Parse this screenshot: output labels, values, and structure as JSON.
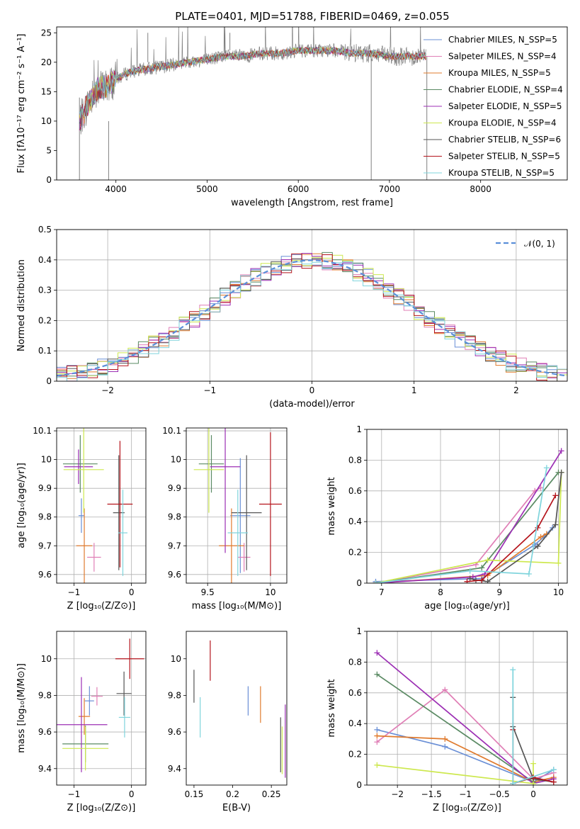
{
  "chart_data": [
    {
      "type": "line",
      "title": "PLATE=0401, MJD=51788, FIBERID=0469, z=0.055",
      "xlabel": "wavelength [Angstrom, rest frame]",
      "ylabel": "Flux [fλ10⁻¹⁷ erg cm⁻² s⁻¹ A⁻¹]",
      "xlim": [
        3350,
        8950
      ],
      "ylim": [
        0,
        26
      ],
      "xticks": [
        4000,
        5000,
        6000,
        7000,
        8000
      ],
      "yticks": [
        0,
        5,
        10,
        15,
        20,
        25
      ],
      "legend_position": "upper-right",
      "approx_continuum": {
        "x": [
          3600,
          3700,
          3800,
          3900,
          4000,
          4100,
          4200,
          4400,
          4600,
          4800,
          5000,
          5200,
          5400,
          5600,
          5800,
          6000,
          6200,
          6400,
          6600,
          6800,
          7000,
          7200,
          7400
        ],
        "y": [
          10,
          13,
          15.5,
          16,
          17,
          18,
          18.5,
          19,
          19.5,
          20,
          20.5,
          21,
          21,
          21.5,
          21.5,
          22,
          22,
          22,
          21.5,
          21.5,
          21,
          21,
          21
        ]
      },
      "series": [
        {
          "name": "Chabrier MILES, N_SSP=5",
          "color": "#6a8fd6"
        },
        {
          "name": "Salpeter MILES, N_SSP=4",
          "color": "#e07fb6"
        },
        {
          "name": "Kroupa MILES, N_SSP=5",
          "color": "#e07b2e"
        },
        {
          "name": "Chabrier ELODIE, N_SSP=4",
          "color": "#5a8a63"
        },
        {
          "name": "Salpeter ELODIE, N_SSP=5",
          "color": "#9c2fb4"
        },
        {
          "name": "Kroupa ELODIE, N_SSP=4",
          "color": "#cde84e"
        },
        {
          "name": "Chabrier STELIB, N_SSP=6",
          "color": "#555555"
        },
        {
          "name": "Salpeter STELIB, N_SSP=5",
          "color": "#b5141c"
        },
        {
          "name": "Kroupa STELIB, N_SSP=5",
          "color": "#7fd4dc"
        }
      ]
    },
    {
      "type": "line",
      "xlabel": "(data-model)/error",
      "ylabel": "Normed distribution",
      "xlim": [
        -2.5,
        2.5
      ],
      "ylim": [
        0,
        0.5
      ],
      "xticks": [
        -2,
        -1,
        0,
        1,
        2
      ],
      "yticks": [
        0.0,
        0.1,
        0.2,
        0.3,
        0.4,
        0.5
      ],
      "grid": true,
      "legend": [
        "𝒩(0, 1)"
      ],
      "legend_position": "upper-right",
      "reference_curve": "standard normal N(0,1), dashed, #5b8fd9",
      "histogram_bin_width": 0.1
    },
    {
      "type": "scatter",
      "xlabel": "Z [log₁₀(Z/Z⊙)]",
      "ylabel": "age  [log₁₀(age/yr)]",
      "xlim": [
        -1.3,
        0.25
      ],
      "ylim": [
        9.57,
        10.11
      ],
      "xticks": [
        -1,
        0
      ],
      "yticks": [
        9.6,
        9.7,
        9.8,
        9.9,
        10.0,
        10.1
      ],
      "grid": true,
      "points": [
        {
          "x": -0.87,
          "y": 9.805,
          "xerr": 0.05,
          "yerr": 0.06,
          "color": "#6a8fd6"
        },
        {
          "x": -0.65,
          "y": 9.66,
          "xerr": 0.12,
          "yerr": 0.05,
          "color": "#e07fb6"
        },
        {
          "x": -0.82,
          "y": 9.7,
          "xerr": 0.14,
          "yerr": 0.13,
          "color": "#e07b2e"
        },
        {
          "x": -0.89,
          "y": 9.985,
          "xerr": 0.3,
          "yerr": 0.1,
          "color": "#5a8a63"
        },
        {
          "x": -0.92,
          "y": 9.975,
          "xerr": 0.25,
          "yerr": 0.06,
          "color": "#9c2fb4"
        },
        {
          "x": -0.83,
          "y": 9.965,
          "xerr": 0.35,
          "yerr": 0.15,
          "color": "#cde84e"
        },
        {
          "x": -0.22,
          "y": 9.815,
          "xerr": 0.1,
          "yerr": 0.2,
          "color": "#555555"
        },
        {
          "x": -0.2,
          "y": 9.845,
          "xerr": 0.22,
          "yerr": 0.22,
          "color": "#b5141c"
        },
        {
          "x": -0.15,
          "y": 9.745,
          "xerr": 0.08,
          "yerr": 0.15,
          "color": "#7fd4dc"
        }
      ]
    },
    {
      "type": "scatter",
      "xlabel": "mass [log₁₀(M/M⊙)]",
      "xlim": [
        9.33,
        10.13
      ],
      "ylim": [
        9.57,
        10.11
      ],
      "xticks": [
        9.5,
        10.0
      ],
      "yticks": [
        9.6,
        9.7,
        9.8,
        9.9,
        10.0,
        10.1
      ],
      "grid": true,
      "points": [
        {
          "x": 9.76,
          "y": 9.805,
          "xerr": 0.08,
          "yerr": 0.2,
          "color": "#6a8fd6"
        },
        {
          "x": 9.79,
          "y": 9.66,
          "xerr": 0.05,
          "yerr": 0.05,
          "color": "#e07fb6"
        },
        {
          "x": 9.69,
          "y": 9.7,
          "xerr": 0.1,
          "yerr": 0.13,
          "color": "#e07b2e"
        },
        {
          "x": 9.53,
          "y": 9.985,
          "xerr": 0.1,
          "yerr": 0.1,
          "color": "#5a8a63"
        },
        {
          "x": 9.64,
          "y": 9.975,
          "xerr": 0.12,
          "yerr": 0.3,
          "color": "#9c2fb4"
        },
        {
          "x": 9.51,
          "y": 9.965,
          "xerr": 0.12,
          "yerr": 0.15,
          "color": "#cde84e"
        },
        {
          "x": 9.81,
          "y": 9.815,
          "xerr": 0.12,
          "yerr": 0.2,
          "color": "#555555"
        },
        {
          "x": 10.0,
          "y": 9.845,
          "xerr": 0.09,
          "yerr": 0.25,
          "color": "#b5141c"
        },
        {
          "x": 9.74,
          "y": 9.745,
          "xerr": 0.08,
          "yerr": 0.15,
          "color": "#7fd4dc"
        }
      ]
    },
    {
      "type": "line",
      "xlabel": "age  [log₁₀(age/yr)]",
      "ylabel": "mass weight",
      "xlim": [
        6.75,
        10.15
      ],
      "ylim": [
        0,
        1.0
      ],
      "xticks": [
        7,
        8,
        9,
        10
      ],
      "yticks": [
        0.0,
        0.2,
        0.4,
        0.6,
        0.8,
        1.0
      ],
      "grid": true,
      "series": [
        {
          "name": "Chabrier MILES",
          "color": "#6a8fd6",
          "x": [
            6.9,
            8.7,
            9.6,
            9.75,
            9.9
          ],
          "y": [
            0.01,
            0.03,
            0.25,
            0.3,
            0.36
          ]
        },
        {
          "name": "Salpeter MILES",
          "color": "#e07fb6",
          "x": [
            6.9,
            8.6,
            9.6,
            9.7
          ],
          "y": [
            0.0,
            0.12,
            0.6,
            0.62
          ]
        },
        {
          "name": "Kroupa MILES",
          "color": "#e07b2e",
          "x": [
            6.9,
            8.8,
            9.7,
            9.8
          ],
          "y": [
            0.0,
            0.05,
            0.3,
            0.32
          ]
        },
        {
          "name": "Chabrier ELODIE",
          "color": "#5a8a63",
          "x": [
            6.9,
            8.7,
            10.0
          ],
          "y": [
            0.0,
            0.1,
            0.72
          ]
        },
        {
          "name": "Salpeter ELODIE",
          "color": "#9c2fb4",
          "x": [
            6.9,
            8.55,
            8.75,
            10.05
          ],
          "y": [
            0.0,
            0.04,
            0.06,
            0.86
          ]
        },
        {
          "name": "Kroupa ELODIE",
          "color": "#cde84e",
          "x": [
            6.9,
            8.8,
            10.0,
            10.05
          ],
          "y": [
            0.0,
            0.15,
            0.13,
            0.72
          ]
        },
        {
          "name": "Chabrier STELIB",
          "color": "#555555",
          "x": [
            8.5,
            8.6,
            8.8,
            9.65,
            9.95,
            10.05
          ],
          "y": [
            0.03,
            0.02,
            0.01,
            0.24,
            0.38,
            0.72
          ]
        },
        {
          "name": "Salpeter STELIB",
          "color": "#b5141c",
          "x": [
            8.45,
            8.7,
            9.65,
            9.95
          ],
          "y": [
            0.01,
            0.02,
            0.36,
            0.57
          ]
        },
        {
          "name": "Kroupa STELIB",
          "color": "#7fd4dc",
          "x": [
            6.9,
            8.5,
            9.5,
            9.8
          ],
          "y": [
            0.0,
            0.08,
            0.06,
            0.75
          ]
        }
      ]
    },
    {
      "type": "scatter",
      "xlabel": "Z [log₁₀(Z/Z⊙)]",
      "ylabel": "mass [log₁₀(M/M⊙)]",
      "xlim": [
        -1.3,
        0.25
      ],
      "ylim": [
        9.31,
        10.15
      ],
      "xticks": [
        -1,
        0
      ],
      "yticks": [
        9.4,
        9.6,
        9.8,
        10.0
      ],
      "grid": true,
      "points": [
        {
          "x": -0.73,
          "y": 9.77,
          "xerr": 0.08,
          "yerr": 0.08,
          "color": "#6a8fd6"
        },
        {
          "x": -0.6,
          "y": 9.795,
          "xerr": 0.1,
          "yerr": 0.05,
          "color": "#e07fb6"
        },
        {
          "x": -0.82,
          "y": 9.685,
          "xerr": 0.1,
          "yerr": 0.1,
          "color": "#e07b2e"
        },
        {
          "x": -0.8,
          "y": 9.535,
          "xerr": 0.4,
          "yerr": 0.1,
          "color": "#5a8a63"
        },
        {
          "x": -0.87,
          "y": 9.64,
          "xerr": 0.45,
          "yerr": 0.26,
          "color": "#9c2fb4"
        },
        {
          "x": -0.8,
          "y": 9.51,
          "xerr": 0.4,
          "yerr": 0.12,
          "color": "#cde84e"
        },
        {
          "x": -0.13,
          "y": 9.81,
          "xerr": 0.13,
          "yerr": 0.12,
          "color": "#555555"
        },
        {
          "x": -0.03,
          "y": 10.0,
          "xerr": 0.25,
          "yerr": 0.11,
          "color": "#b5141c"
        },
        {
          "x": -0.12,
          "y": 9.68,
          "xerr": 0.1,
          "yerr": 0.11,
          "color": "#7fd4dc"
        }
      ]
    },
    {
      "type": "scatter",
      "xlabel": "E(B-V)",
      "xlim": [
        0.14,
        0.27
      ],
      "ylim": [
        9.31,
        10.15
      ],
      "xticks": [
        0.15,
        0.2,
        0.25
      ],
      "yticks": [
        9.4,
        9.6,
        9.8,
        10.0
      ],
      "grid": false,
      "points": [
        {
          "x": 0.22,
          "y": 9.77,
          "yerr": 0.08,
          "color": "#6a8fd6"
        },
        {
          "x": 0.236,
          "y": 9.75,
          "yerr": 0.1,
          "color": "#e07b2e"
        },
        {
          "x": 0.15,
          "y": 9.85,
          "yerr": 0.09,
          "color": "#555555"
        },
        {
          "x": 0.171,
          "y": 9.99,
          "yerr": 0.11,
          "color": "#b5141c"
        },
        {
          "x": 0.158,
          "y": 9.68,
          "yerr": 0.11,
          "color": "#7fd4dc"
        },
        {
          "x": 0.262,
          "y": 9.53,
          "yerr": 0.15,
          "color": "#555555"
        },
        {
          "x": 0.264,
          "y": 9.5,
          "yerr": 0.13,
          "color": "#cde84e"
        },
        {
          "x": 0.268,
          "y": 9.55,
          "yerr": 0.2,
          "color": "#9c2fb4"
        }
      ]
    },
    {
      "type": "line",
      "xlabel": "Z [log₁₀(Z/Z⊙)]",
      "ylabel": "mass weight",
      "xlim": [
        -2.45,
        0.5
      ],
      "ylim": [
        0,
        1.0
      ],
      "xticks": [
        -2.0,
        -1.5,
        -1.0,
        -0.5,
        0.0
      ],
      "yticks": [
        0.0,
        0.2,
        0.4,
        0.6,
        0.8,
        1.0
      ],
      "grid": true,
      "series": [
        {
          "name": "Chabrier MILES",
          "color": "#6a8fd6",
          "x": [
            -2.3,
            -1.3,
            0.0,
            0.3
          ],
          "y": [
            0.36,
            0.25,
            0.02,
            0.1
          ]
        },
        {
          "name": "Salpeter MILES",
          "color": "#e07fb6",
          "x": [
            -2.3,
            -1.3,
            0.0,
            0.3
          ],
          "y": [
            0.28,
            0.62,
            0.04,
            0.08
          ]
        },
        {
          "name": "Kroupa MILES",
          "color": "#e07b2e",
          "x": [
            -2.3,
            -1.3,
            0.0,
            0.3
          ],
          "y": [
            0.32,
            0.3,
            0.02,
            0.05
          ]
        },
        {
          "name": "Chabrier ELODIE",
          "color": "#5a8a63",
          "x": [
            -2.3,
            0.0
          ],
          "y": [
            0.72,
            0.02
          ]
        },
        {
          "name": "Salpeter ELODIE",
          "color": "#9c2fb4",
          "x": [
            -2.3,
            0.0,
            0.3
          ],
          "y": [
            0.86,
            0.01,
            0.04
          ]
        },
        {
          "name": "Kroupa ELODIE",
          "color": "#cde84e",
          "x": [
            -2.3,
            0.0,
            0.0
          ],
          "y": [
            0.13,
            0.01,
            0.14
          ]
        },
        {
          "name": "Chabrier STELIB",
          "color": "#555555",
          "x": [
            -0.3,
            -0.3,
            0.0,
            0.3
          ],
          "y": [
            0.57,
            0.38,
            0.04,
            0.02
          ]
        },
        {
          "name": "Salpeter STELIB",
          "color": "#b5141c",
          "x": [
            -0.3,
            -0.3,
            0.0,
            0.3
          ],
          "y": [
            0.36,
            0.01,
            0.05,
            0.02
          ]
        },
        {
          "name": "Kroupa STELIB",
          "color": "#7fd4dc",
          "x": [
            -0.3,
            -0.3,
            0.3
          ],
          "y": [
            0.75,
            0.01,
            0.1
          ]
        }
      ]
    }
  ]
}
